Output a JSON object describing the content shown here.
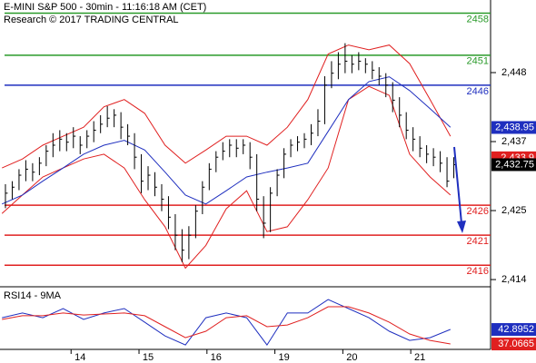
{
  "chart_data": [
    {
      "type": "ohlc",
      "title": "E-MINI S&P 500 - 30min - 11:16:18 AM (CET)",
      "subtitle": "Research © 2017 TRADING CENTRAL",
      "bar_color": "#000000",
      "x": [
        12.9,
        13.0,
        13.1,
        13.2,
        13.3,
        13.4,
        13.5,
        13.6,
        13.7,
        13.8,
        13.9,
        14.0,
        14.1,
        14.2,
        14.3,
        14.4,
        14.5,
        14.6,
        14.7,
        14.8,
        14.9,
        15.0,
        15.1,
        15.2,
        15.3,
        15.4,
        15.5,
        15.6,
        15.7,
        15.8,
        15.9,
        16.0,
        16.1,
        16.2,
        16.3,
        16.4,
        16.5,
        16.6,
        16.7,
        16.8,
        16.9,
        17.0,
        17.1,
        17.2,
        17.3,
        17.4,
        17.5,
        17.6,
        17.7,
        17.8,
        17.9,
        18.0,
        18.1,
        18.2,
        18.3,
        18.4,
        18.5,
        18.6,
        18.7,
        18.8,
        18.9,
        19.0,
        19.1,
        19.2,
        19.3,
        19.4,
        19.5
      ],
      "high": [
        2429.5,
        2430,
        2432,
        2433.5,
        2433,
        2434,
        2436,
        2438,
        2438.5,
        2438,
        2439,
        2437.5,
        2438.5,
        2440,
        2441,
        2442.5,
        2442,
        2441.5,
        2439.5,
        2438,
        2434.5,
        2432.5,
        2431.5,
        2429.5,
        2427.5,
        2424.5,
        2422,
        2422.5,
        2426,
        2430,
        2433,
        2435,
        2436.5,
        2437,
        2437,
        2437,
        2436.5,
        2434.5,
        2427.5,
        2429,
        2432,
        2435.5,
        2437,
        2437.5,
        2438,
        2439.5,
        2442,
        2447.5,
        2450,
        2451.5,
        2453,
        2451,
        2451.5,
        2450.5,
        2450,
        2449,
        2448,
        2446.5,
        2444,
        2441.5,
        2439,
        2437.5,
        2436,
        2435.5,
        2435,
        2434,
        2434
      ],
      "low": [
        2425.5,
        2427,
        2428.5,
        2430,
        2430,
        2431,
        2432.5,
        2434,
        2435,
        2435,
        2435.5,
        2434.5,
        2435.5,
        2436.5,
        2438,
        2439,
        2439,
        2437,
        2436,
        2432,
        2428,
        2428.5,
        2427.5,
        2425,
        2422,
        2418.5,
        2416.5,
        2417,
        2420.5,
        2424.5,
        2428.5,
        2431.5,
        2433.5,
        2434,
        2434,
        2434.5,
        2432,
        2425,
        2420.5,
        2421.5,
        2427.5,
        2430.5,
        2434,
        2435,
        2435.5,
        2436,
        2437.5,
        2439.5,
        2445.5,
        2447,
        2448,
        2448,
        2448.5,
        2448,
        2447,
        2446,
        2444,
        2441.5,
        2439,
        2437,
        2435,
        2434,
        2433,
        2432.5,
        2431.5,
        2429,
        2430.5
      ],
      "close": [
        2428,
        2429,
        2431,
        2432,
        2431.5,
        2433,
        2435,
        2436,
        2437,
        2436.5,
        2437.5,
        2436,
        2437.5,
        2438.5,
        2439.5,
        2440.5,
        2441,
        2439,
        2437.5,
        2434,
        2430,
        2431,
        2429,
        2427,
        2424,
        2421,
        2418.5,
        2421,
        2425,
        2429,
        2432,
        2434,
        2435,
        2436,
        2435.5,
        2436,
        2434,
        2427,
        2423,
        2428,
        2431,
        2434.5,
        2436,
        2436.5,
        2437,
        2438,
        2440,
        2446,
        2448,
        2449.5,
        2450,
        2449.5,
        2450,
        2449.5,
        2448.5,
        2447.5,
        2446,
        2443.5,
        2441,
        2438.5,
        2437,
        2435.5,
        2434.5,
        2434,
        2433,
        2430,
        2432.75
      ],
      "indicator_x": [
        12.85,
        13.15,
        13.45,
        13.75,
        14.05,
        14.35,
        14.65,
        14.95,
        15.25,
        15.55,
        15.85,
        16.15,
        16.45,
        16.75,
        17.05,
        17.35,
        17.65,
        17.95,
        18.25,
        18.55,
        18.85,
        19.15,
        19.45
      ],
      "overlays": [
        {
          "color": "#e02020",
          "values": [
            2432.2,
            2433.7,
            2436,
            2437.5,
            2439,
            2442.4,
            2443.6,
            2441.3,
            2436,
            2433,
            2435.2,
            2437.5,
            2437.5,
            2436,
            2439,
            2443.6,
            2451.2,
            2452.7,
            2451.9,
            2452.7,
            2449.6,
            2443.6,
            2437.5
          ]
        },
        {
          "color": "#e02020",
          "values": [
            2424.6,
            2427.7,
            2430.7,
            2432.2,
            2433.7,
            2434.5,
            2432.2,
            2426.9,
            2422.4,
            2415.5,
            2419.3,
            2425.4,
            2428.4,
            2421.6,
            2422.4,
            2426.9,
            2432.2,
            2443.6,
            2445.8,
            2444.3,
            2434.5,
            2430.7,
            2427.7
          ]
        },
        {
          "color": "#1f2fbf",
          "values": [
            2426.2,
            2427.7,
            2430,
            2432.2,
            2434.5,
            2436,
            2436.8,
            2435.2,
            2431.5,
            2427.7,
            2426.2,
            2428.4,
            2430.7,
            2431.5,
            2432.2,
            2433,
            2438.3,
            2443.6,
            2446.6,
            2447.4,
            2445.1,
            2442.1,
            2439
          ]
        }
      ],
      "xlim": [
        12.82,
        19.64
      ],
      "ylim": [
        2412.4,
        2460.2
      ],
      "yticks": [
        {
          "value": 2448.1,
          "label": "2,448"
        },
        {
          "value": 2436.6,
          "label": "2,437"
        },
        {
          "value": 2425.1,
          "label": "2,425"
        },
        {
          "value": 2413.6,
          "label": "2,414"
        }
      ],
      "levels": [
        {
          "value": 2458,
          "color": "#2a9a2a"
        },
        {
          "value": 2451,
          "color": "#2a9a2a"
        },
        {
          "value": 2446,
          "color": "#1f2fbf"
        },
        {
          "value": 2426,
          "color": "#e02020"
        },
        {
          "value": 2421,
          "color": "#e02020"
        },
        {
          "value": 2416,
          "color": "#e02020"
        }
      ],
      "price_labels": [
        {
          "value": 2438.95,
          "label": "2,438.95",
          "color": "#1f2fbf"
        },
        {
          "value": 2433.9,
          "label": "2,433.9",
          "color": "#e02020"
        },
        {
          "value": 2432.75,
          "label": "2,432.75",
          "color": "#000000"
        }
      ]
    },
    {
      "type": "line",
      "title": "RSI14 - 9MA",
      "x": [
        12.85,
        13.15,
        13.45,
        13.75,
        14.05,
        14.35,
        14.65,
        14.95,
        15.25,
        15.55,
        15.85,
        16.15,
        16.45,
        16.75,
        17.05,
        17.35,
        17.65,
        17.95,
        18.25,
        18.55,
        18.85,
        19.15,
        19.45
      ],
      "series": [
        {
          "color": "#1f2fbf",
          "values": [
            47.6,
            49.5,
            47.6,
            51.3,
            46.9,
            49.5,
            51.3,
            45.8,
            40.3,
            36.7,
            47.6,
            49.5,
            47.6,
            36.7,
            49.5,
            49.5,
            54.9,
            51.3,
            47.6,
            42.2,
            38.5,
            39.6,
            42.9
          ]
        },
        {
          "color": "#e02020",
          "values": [
            46.9,
            48.4,
            48.4,
            49.5,
            48.7,
            49.1,
            49.5,
            48.4,
            44.0,
            39.6,
            42.2,
            47.6,
            48.4,
            44.0,
            44.7,
            47.6,
            52.0,
            52.0,
            49.5,
            45.8,
            41.1,
            38.5,
            37.1
          ]
        }
      ],
      "xlim": [
        12.82,
        19.64
      ],
      "ylim": [
        34.9,
        59.3
      ],
      "xticks": [
        14,
        15,
        16,
        {
          "value": 17,
          "label": "19"
        },
        {
          "value": 18,
          "label": "20"
        },
        {
          "value": 19,
          "label": "21"
        }
      ],
      "price_labels": [
        {
          "value": 42.8952,
          "color": "#1f2fbf"
        },
        {
          "value": 37.0665,
          "color": "#e02020"
        }
      ]
    }
  ]
}
